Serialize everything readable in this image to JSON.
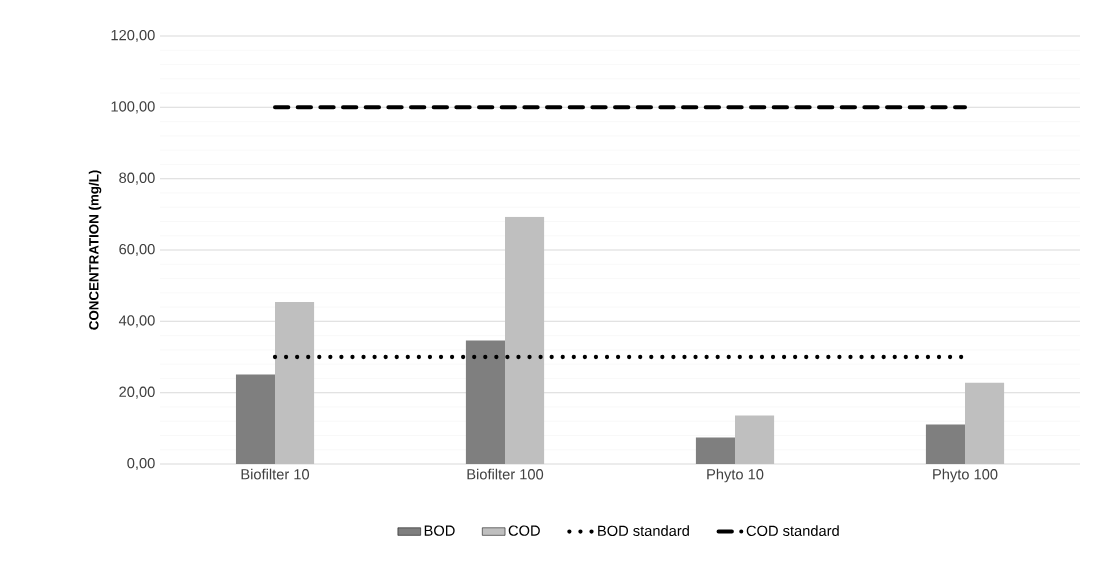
{
  "chart_data": {
    "type": "bar",
    "ylabel": "CONCENTRATION (mg/L)",
    "categories": [
      "Biofilter 10",
      "Biofilter 100",
      "Phyto 10",
      "Phyto 100"
    ],
    "series": [
      {
        "name": "BOD",
        "color": "#7f7f7f",
        "values": [
          25.1,
          34.6,
          7.4,
          11.1
        ]
      },
      {
        "name": "COD",
        "color": "#bfbfbf",
        "values": [
          45.4,
          69.3,
          13.6,
          22.8
        ]
      },
      {
        "name": "BOD standard",
        "type": "line",
        "line_style": "dotted",
        "color": "#000000",
        "values": [
          30,
          30,
          30,
          30
        ]
      },
      {
        "name": "COD standard",
        "type": "line",
        "line_style": "dashed",
        "color": "#000000",
        "values": [
          100,
          100,
          100,
          100
        ]
      }
    ],
    "ylim": [
      0,
      120
    ],
    "yticks": [
      {
        "value": 0,
        "label": "0,00"
      },
      {
        "value": 20,
        "label": "20,00"
      },
      {
        "value": 40,
        "label": "40,00"
      },
      {
        "value": 60,
        "label": "60,00"
      },
      {
        "value": 80,
        "label": "80,00"
      },
      {
        "value": 100,
        "label": "100,00"
      },
      {
        "value": 120,
        "label": "120,00"
      }
    ],
    "grid": "y",
    "legend": "bottom",
    "marker": "none"
  }
}
